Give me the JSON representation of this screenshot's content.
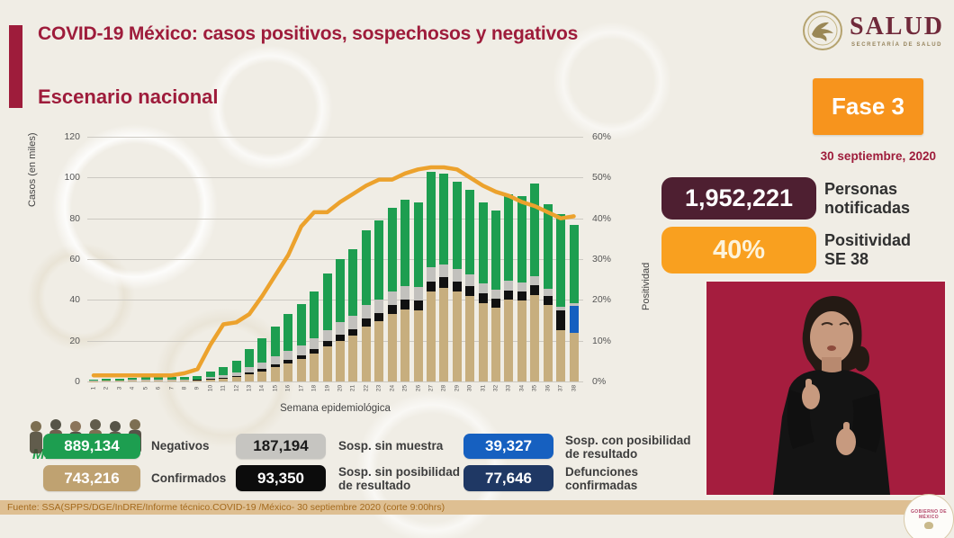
{
  "header": {
    "title": "COVID-19 México: casos positivos, sospechosos y negativos",
    "subtitle": "Escenario nacional",
    "salud_wordmark": "SALUD",
    "salud_subtext": "SECRETARÍA DE SALUD"
  },
  "status": {
    "fase_label": "Fase 3",
    "date": "30 septiembre, 2020",
    "personas_value": "1,952,221",
    "personas_label": "Personas\nnotificadas",
    "positividad_value": "40%",
    "positividad_label": "Positividad\nSE 38"
  },
  "chart_data": {
    "type": "bar",
    "subtype": "stacked-bars-with-line",
    "xlabel": "Semana epidemiológica",
    "ylabel_left": "Casos (en miles)",
    "ylabel_right": "Positividad",
    "ylim_left": [
      0,
      120
    ],
    "ylim_right_pct": [
      0,
      60
    ],
    "yticks_left": [
      "0",
      "20",
      "40",
      "60",
      "80",
      "100",
      "120"
    ],
    "yticks_right": [
      "0%",
      "10%",
      "20%",
      "30%",
      "40%",
      "50%",
      "60%"
    ],
    "grid": "horizontal",
    "categories": [
      1,
      2,
      3,
      4,
      5,
      6,
      7,
      8,
      9,
      10,
      11,
      12,
      13,
      14,
      15,
      16,
      17,
      18,
      19,
      20,
      21,
      22,
      23,
      24,
      25,
      26,
      27,
      28,
      29,
      30,
      31,
      32,
      33,
      34,
      35,
      36,
      37,
      38
    ],
    "series": [
      {
        "name": "Confirmados",
        "color": "#c7ae7e",
        "values": [
          0.2,
          0.3,
          0.35,
          0.4,
          0.45,
          0.5,
          0.5,
          0.55,
          0.6,
          1,
          1.5,
          2.2,
          3.5,
          5,
          7,
          9,
          11,
          13.5,
          17,
          20,
          22.5,
          27,
          29.5,
          33,
          35.5,
          35,
          44,
          46,
          44,
          42,
          38.5,
          36,
          40,
          39.5,
          42.5,
          37.5,
          25,
          24
        ]
      },
      {
        "name": "Sosp. sin posibilidad de resultado",
        "color": "#111111",
        "values": [
          0,
          0.05,
          0.05,
          0.1,
          0.1,
          0.1,
          0.1,
          0.1,
          0.15,
          0.3,
          0.4,
          0.6,
          0.9,
          1.1,
          1.4,
          1.7,
          2,
          2.3,
          2.7,
          3,
          3.3,
          3.7,
          4,
          4.3,
          4.5,
          4.5,
          5,
          5,
          5,
          4.8,
          4.6,
          4.4,
          4.6,
          4.5,
          4.6,
          4.5,
          10,
          0
        ]
      },
      {
        "name": "Sosp. con posibilidad de resultado",
        "color": "#1660c0",
        "values": [
          0,
          0,
          0,
          0,
          0,
          0,
          0,
          0,
          0,
          0,
          0,
          0,
          0,
          0,
          0,
          0,
          0,
          0,
          0,
          0,
          0,
          0,
          0,
          0,
          0,
          0,
          0,
          0,
          0,
          0,
          0,
          0,
          0,
          0,
          0,
          0,
          0,
          13
        ]
      },
      {
        "name": "Sosp. sin muestra",
        "color": "#c2c1bd",
        "values": [
          0.1,
          0.15,
          0.2,
          0.2,
          0.25,
          0.25,
          0.3,
          0.3,
          0.35,
          0.7,
          1.1,
          1.6,
          2.6,
          3.2,
          3.8,
          4.3,
          4.8,
          5.2,
          5.6,
          6,
          6.2,
          6.6,
          6.8,
          7,
          7,
          6.8,
          7,
          6.5,
          6.2,
          5.8,
          5.2,
          4.8,
          4.8,
          4.6,
          4.4,
          3.5,
          1.5,
          1.5
        ]
      },
      {
        "name": "Negativos",
        "color": "#1d9e50",
        "values": [
          0.4,
          0.7,
          0.9,
          1.1,
          1.2,
          1.25,
          1.3,
          1.45,
          1.7,
          3,
          4,
          5.6,
          9,
          11.7,
          14.8,
          18,
          20.2,
          23,
          27.7,
          31,
          33,
          36.7,
          38.7,
          40.7,
          42,
          41.7,
          47,
          44.5,
          42.8,
          41.4,
          39.7,
          38.8,
          42.6,
          42.4,
          45.5,
          41.5,
          45.5,
          38.5
        ]
      }
    ],
    "line": {
      "name": "Positividad (%)",
      "color": "#eca22d",
      "values": [
        1.5,
        1.5,
        1.5,
        1.5,
        1.5,
        1.5,
        1.5,
        2,
        3,
        9,
        14,
        14.5,
        16.5,
        21,
        26,
        31,
        38,
        41.5,
        41.5,
        44,
        46,
        48,
        49.5,
        49.5,
        51,
        52,
        52.5,
        52.5,
        52,
        50,
        48,
        46.5,
        45.5,
        44,
        43,
        41.5,
        40,
        40.5
      ]
    }
  },
  "legend": {
    "items": [
      {
        "value": "889,134",
        "label": "Negativos",
        "color": "#1d9e50",
        "text_color": "#ffffff"
      },
      {
        "value": "187,194",
        "label": "Sosp. sin muestra",
        "color": "#c6c5c1",
        "text_color": "#1a1a1a"
      },
      {
        "value": "39,327",
        "label": "Sosp. con posibilidad\nde resultado",
        "color": "#1660c0",
        "text_color": "#ffffff"
      },
      {
        "value": "743,216",
        "label": "Confirmados",
        "color": "#bfa271",
        "text_color": "#ffffff"
      },
      {
        "value": "93,350",
        "label": "Sosp. sin posibilidad\nde resultado",
        "color": "#0c0c0c",
        "text_color": "#ffffff"
      },
      {
        "value": "77,646",
        "label": "Defunciones\nconfirmadas",
        "color": "#1f3864",
        "text_color": "#ffffff"
      }
    ]
  },
  "footer": {
    "source": "Fuente: SSA(SPPS/DGE/InDRE/Informe técnico.COVID-19 /México- 30 septiembre 2020 (corte 9:00hrs)"
  },
  "watermarks": {
    "mexico_text": "MÉXICO",
    "gobierno_line1": "GOBIERNO DE",
    "gobierno_line2": "MÉXICO"
  },
  "colors": {
    "title_maroon": "#9e1c3b",
    "fase_orange": "#f7941d",
    "personas_badge": "#4e1f31",
    "positividad_badge": "#f9a01f",
    "line_orange": "#eca22d",
    "interpreter_bg": "#a51d3e",
    "footer_bar": "#debf92",
    "background": "#f0ede5"
  }
}
